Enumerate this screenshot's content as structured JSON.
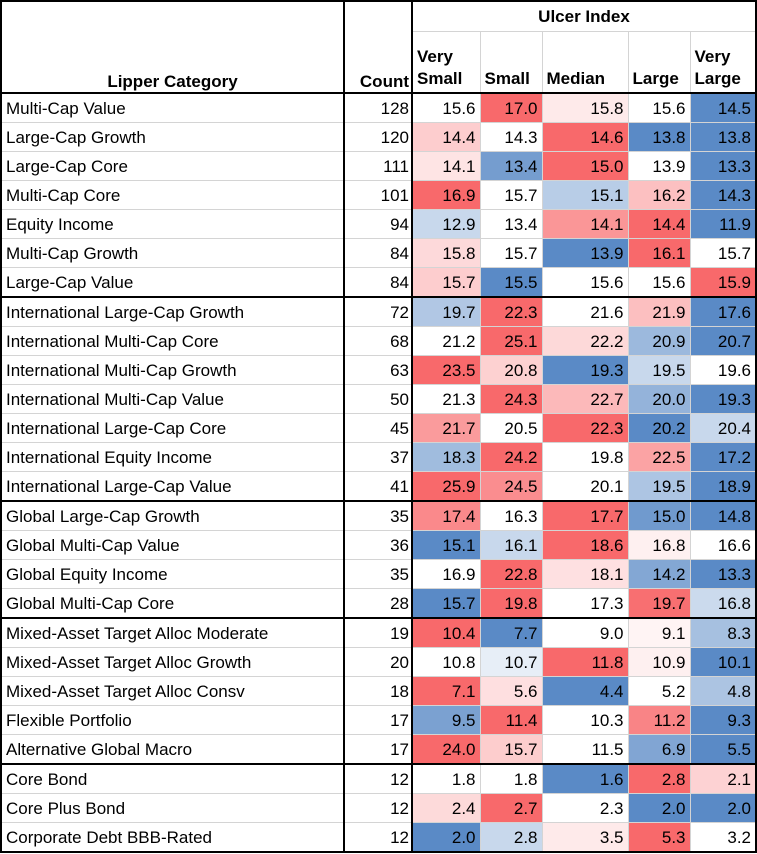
{
  "header": {
    "lipper_category": "Lipper Category",
    "count": "Count",
    "ulcer_index": "Ulcer Index",
    "size_columns": [
      "Very Small",
      "Small",
      "Median",
      "Large",
      "Very Large"
    ]
  },
  "colors": {
    "high": "#f8696b",
    "mid": "#ffffff",
    "low": "#5a8ac6"
  },
  "rows": [
    {
      "category": "Multi-Cap Value",
      "count": "128",
      "values": [
        "15.6",
        "17.0",
        "15.8",
        "15.6",
        "14.5"
      ],
      "group_start": true
    },
    {
      "category": "Large-Cap Growth",
      "count": "120",
      "values": [
        "14.4",
        "14.3",
        "14.6",
        "13.8",
        "13.8"
      ]
    },
    {
      "category": "Large-Cap Core",
      "count": "111",
      "values": [
        "14.1",
        "13.4",
        "15.0",
        "13.9",
        "13.3"
      ]
    },
    {
      "category": "Multi-Cap Core",
      "count": "101",
      "values": [
        "16.9",
        "15.7",
        "15.1",
        "16.2",
        "14.3"
      ]
    },
    {
      "category": "Equity Income",
      "count": "94",
      "values": [
        "12.9",
        "13.4",
        "14.1",
        "14.4",
        "11.9"
      ]
    },
    {
      "category": "Multi-Cap Growth",
      "count": "84",
      "values": [
        "15.8",
        "15.7",
        "13.9",
        "16.1",
        "15.7"
      ]
    },
    {
      "category": "Large-Cap Value",
      "count": "84",
      "values": [
        "15.7",
        "15.5",
        "15.6",
        "15.6",
        "15.9"
      ]
    },
    {
      "category": "International Large-Cap Growth",
      "count": "72",
      "values": [
        "19.7",
        "22.3",
        "21.6",
        "21.9",
        "17.6"
      ],
      "group_start": true
    },
    {
      "category": "International Multi-Cap Core",
      "count": "68",
      "values": [
        "21.2",
        "25.1",
        "22.2",
        "20.9",
        "20.7"
      ]
    },
    {
      "category": "International Multi-Cap Growth",
      "count": "63",
      "values": [
        "23.5",
        "20.8",
        "19.3",
        "19.5",
        "19.6"
      ]
    },
    {
      "category": "International Multi-Cap Value",
      "count": "50",
      "values": [
        "21.3",
        "24.3",
        "22.7",
        "20.0",
        "19.3"
      ]
    },
    {
      "category": "International Large-Cap Core",
      "count": "45",
      "values": [
        "21.7",
        "20.5",
        "22.3",
        "20.2",
        "20.4"
      ]
    },
    {
      "category": "International Equity Income",
      "count": "37",
      "values": [
        "18.3",
        "24.2",
        "19.8",
        "22.5",
        "17.2"
      ]
    },
    {
      "category": "International Large-Cap Value",
      "count": "41",
      "values": [
        "25.9",
        "24.5",
        "20.1",
        "19.5",
        "18.9"
      ]
    },
    {
      "category": "Global Large-Cap Growth",
      "count": "35",
      "values": [
        "17.4",
        "16.3",
        "17.7",
        "15.0",
        "14.8"
      ],
      "group_start": true
    },
    {
      "category": "Global Multi-Cap Value",
      "count": "36",
      "values": [
        "15.1",
        "16.1",
        "18.6",
        "16.8",
        "16.6"
      ]
    },
    {
      "category": "Global Equity Income",
      "count": "35",
      "values": [
        "16.9",
        "22.8",
        "18.1",
        "14.2",
        "13.3"
      ]
    },
    {
      "category": "Global Multi-Cap Core",
      "count": "28",
      "values": [
        "15.7",
        "19.8",
        "17.3",
        "19.7",
        "16.8"
      ]
    },
    {
      "category": "Mixed-Asset Target Alloc Moderate",
      "count": "19",
      "values": [
        "10.4",
        "7.7",
        "9.0",
        "9.1",
        "8.3"
      ],
      "group_start": true
    },
    {
      "category": "Mixed-Asset Target Alloc Growth",
      "count": "20",
      "values": [
        "10.8",
        "10.7",
        "11.8",
        "10.9",
        "10.1"
      ]
    },
    {
      "category": "Mixed-Asset Target Alloc Consv",
      "count": "18",
      "values": [
        "7.1",
        "5.6",
        "4.4",
        "5.2",
        "4.8"
      ]
    },
    {
      "category": "Flexible Portfolio",
      "count": "17",
      "values": [
        "9.5",
        "11.4",
        "10.3",
        "11.2",
        "9.3"
      ]
    },
    {
      "category": "Alternative Global Macro",
      "count": "17",
      "values": [
        "24.0",
        "15.7",
        "11.5",
        "6.9",
        "5.5"
      ]
    },
    {
      "category": "Core Bond",
      "count": "12",
      "values": [
        "1.8",
        "1.8",
        "1.6",
        "2.8",
        "2.1"
      ],
      "group_start": true
    },
    {
      "category": "Core Plus Bond",
      "count": "12",
      "values": [
        "2.4",
        "2.7",
        "2.3",
        "2.0",
        "2.0"
      ]
    },
    {
      "category": "Corporate Debt BBB-Rated",
      "count": "12",
      "values": [
        "2.0",
        "2.8",
        "3.5",
        "5.3",
        "3.2"
      ]
    }
  ]
}
